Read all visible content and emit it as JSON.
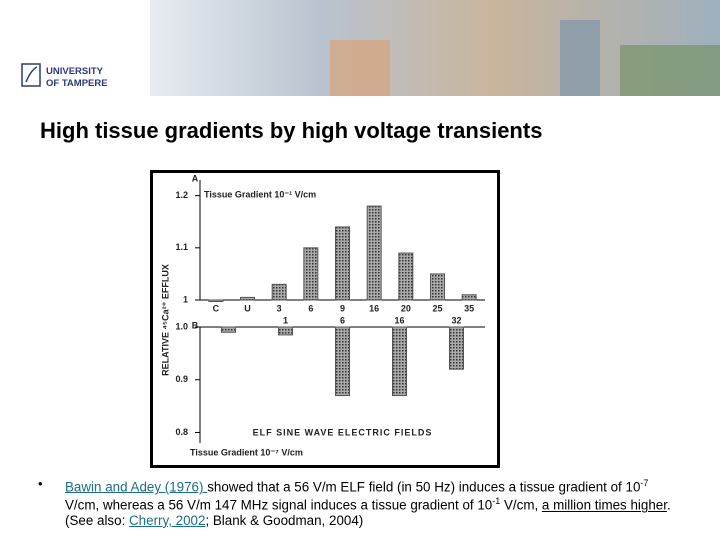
{
  "header": {
    "logo_line1": "UNIVERSITY",
    "logo_line2": "OF TAMPERE"
  },
  "title": "High tissue gradients by high voltage transients",
  "chart_data": [
    {
      "type": "bar",
      "panel": "A",
      "annotation": "Tissue Gradient 10⁻¹ V/cm",
      "ylabel": "RELATIVE ⁴⁵Ca²⁺ EFFLUX",
      "categories": [
        "C",
        "U",
        "3",
        "6",
        "9",
        "16",
        "20",
        "25",
        "35"
      ],
      "values": [
        1.0,
        1.005,
        1.03,
        1.1,
        1.14,
        1.18,
        1.09,
        1.05,
        1.01
      ],
      "color": "#555555",
      "bars_from": "bottom",
      "ylim": [
        1,
        1.23
      ],
      "yticks": [
        1,
        1.1,
        1.2
      ]
    },
    {
      "type": "bar",
      "panel": "B",
      "annotation": "Tissue Gradient 10⁻⁷ V/cm",
      "xlabel": "ELF SINE WAVE ELECTRIC FIELDS",
      "categories": [
        null,
        "1",
        "6",
        "16",
        "32"
      ],
      "values": [
        0.99,
        0.985,
        0.87,
        0.87,
        0.92
      ],
      "color": "#555555",
      "bars_from": "top",
      "ylim": [
        0.78,
        1.0
      ],
      "yticks": [
        {
          "value": 1,
          "label": "1.0"
        },
        0.9,
        0.8
      ]
    }
  ],
  "bullet": {
    "runs": [
      "Bawin and Adey (1976) ",
      "showed that a 56 V/m ELF field (in 50 Hz) induces a tissue gradient of 10",
      "-7",
      " V/cm, whereas a 56 V/m 147 MHz signal induces a tissue gradient of 10",
      "-1",
      " V/cm, ",
      "a million times higher",
      ". (See also: ",
      "Cherry, 2002",
      "; Blank & Goodman, 2004)"
    ]
  }
}
